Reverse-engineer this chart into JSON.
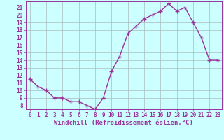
{
  "xlabel": "Windchill (Refroidissement éolien,°C)",
  "x": [
    0,
    1,
    2,
    3,
    4,
    5,
    6,
    7,
    8,
    9,
    10,
    11,
    12,
    13,
    14,
    15,
    16,
    17,
    18,
    19,
    20,
    21,
    22,
    23
  ],
  "y": [
    11.5,
    10.5,
    10.0,
    9.0,
    9.0,
    8.5,
    8.5,
    8.0,
    7.5,
    9.0,
    12.5,
    14.5,
    17.5,
    18.5,
    19.5,
    20.0,
    20.5,
    21.5,
    20.5,
    21.0,
    19.0,
    17.0,
    14.0,
    14.0
  ],
  "line_color": "#993399",
  "marker": "D",
  "marker_size": 2.0,
  "bg_color": "#ccffff",
  "grid_color": "#aabbbb",
  "ylim": [
    7.5,
    21.8
  ],
  "yticks": [
    8,
    9,
    10,
    11,
    12,
    13,
    14,
    15,
    16,
    17,
    18,
    19,
    20,
    21
  ],
  "xlim": [
    -0.5,
    23.5
  ],
  "xticks": [
    0,
    1,
    2,
    3,
    4,
    5,
    6,
    7,
    8,
    9,
    10,
    11,
    12,
    13,
    14,
    15,
    16,
    17,
    18,
    19,
    20,
    21,
    22,
    23
  ],
  "tick_label_color": "#993399",
  "tick_label_fontsize": 5.5,
  "xlabel_fontsize": 6.5,
  "line_width": 1.0
}
